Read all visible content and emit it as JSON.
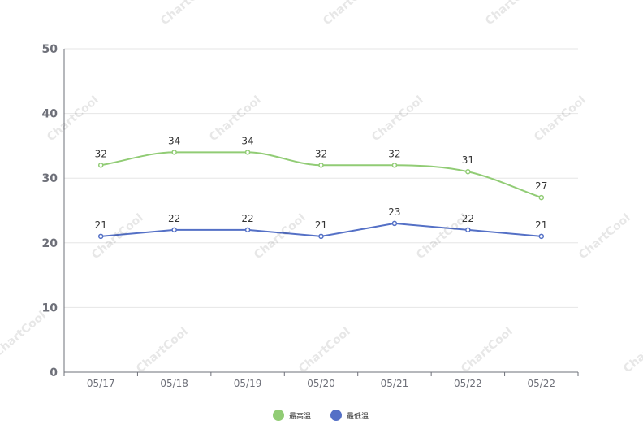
{
  "watermark_text": "ChartCool",
  "chart_data": {
    "type": "line",
    "categories": [
      "05/17",
      "05/18",
      "05/19",
      "05/20",
      "05/21",
      "05/22",
      "05/22"
    ],
    "series": [
      {
        "name": "最高温",
        "values": [
          32,
          34,
          34,
          32,
          32,
          31,
          27
        ],
        "color": "#91cc75",
        "smooth": true
      },
      {
        "name": "最低温",
        "values": [
          21,
          22,
          22,
          21,
          23,
          22,
          21
        ],
        "color": "#5470c6",
        "smooth": false
      }
    ],
    "yticks": [
      "0",
      "10",
      "20",
      "30",
      "40",
      "50"
    ],
    "ylim": [
      0,
      50
    ],
    "title": "",
    "xlabel": "",
    "ylabel": "",
    "grid": true,
    "legend_position": "bottom-center"
  }
}
